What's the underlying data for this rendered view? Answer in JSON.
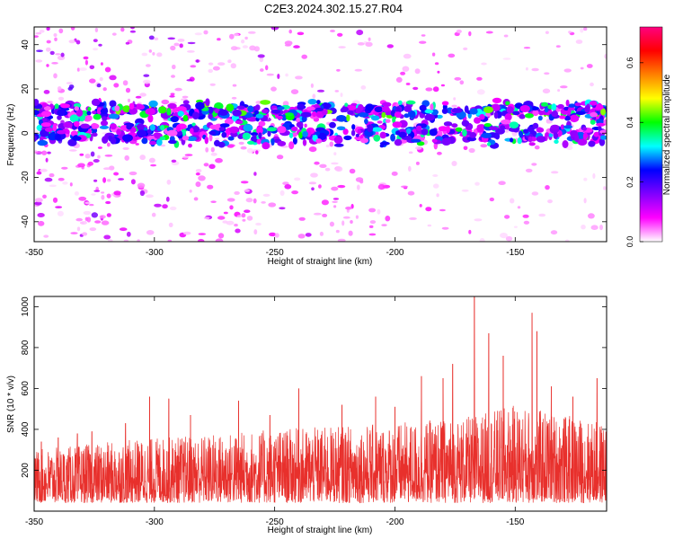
{
  "title": "C2E3.2024.302.15.27.R04",
  "chart_data": [
    {
      "type": "heatmap",
      "xlabel": "Height of straight line (km)",
      "ylabel": "Frequency (Hz)",
      "xlim": [
        -350,
        -112
      ],
      "ylim": [
        -49,
        48
      ],
      "x_ticks": [
        "-350",
        "-300",
        "-250",
        "-200",
        "-150"
      ],
      "x_tick_values": [
        -350,
        -300,
        -250,
        -200,
        -150
      ],
      "y_ticks": [
        "-40",
        "-20",
        "0",
        "20",
        "40"
      ],
      "y_tick_values": [
        -40,
        -20,
        0,
        20,
        40
      ],
      "colorbar": {
        "label": "Normalized spectral amplitude",
        "range": [
          0,
          0.72
        ],
        "ticks": [
          "0.0",
          "0.2",
          "0.4",
          "0.6"
        ],
        "tick_values": [
          0,
          0.2,
          0.4,
          0.6
        ],
        "colormap": [
          "#ffffff",
          "#ff00ff",
          "#8000ff",
          "#0000ff",
          "#00ffff",
          "#00ff00",
          "#ffff00",
          "#ff8000",
          "#ff0000",
          "#ff0080"
        ]
      },
      "bands": [
        {
          "center_hz": 10,
          "width_hz": 5,
          "peak_amplitude": 0.45
        },
        {
          "center_hz": 0,
          "width_hz": 6,
          "peak_amplitude": 0.4
        }
      ]
    },
    {
      "type": "line",
      "xlabel": "Height of straight line (km)",
      "ylabel": "SNR (10 * v/v)",
      "xlim": [
        -350,
        -112
      ],
      "ylim": [
        0,
        1050
      ],
      "x_ticks": [
        "-350",
        "-300",
        "-250",
        "-200",
        "-150"
      ],
      "x_tick_values": [
        -350,
        -300,
        -250,
        -200,
        -150
      ],
      "y_ticks": [
        "200",
        "400",
        "600",
        "800",
        "1000"
      ],
      "y_tick_values": [
        200,
        400,
        600,
        800,
        1000
      ],
      "line_color": "#e8302c",
      "baseline_trend": [
        {
          "x": -350,
          "low": 40,
          "high": 300
        },
        {
          "x": -300,
          "low": 40,
          "high": 360
        },
        {
          "x": -250,
          "low": 40,
          "high": 400
        },
        {
          "x": -200,
          "low": 40,
          "high": 430
        },
        {
          "x": -170,
          "low": 40,
          "high": 460
        },
        {
          "x": -150,
          "low": 40,
          "high": 520
        },
        {
          "x": -112,
          "low": 40,
          "high": 430
        }
      ],
      "peaks": [
        {
          "x": -347,
          "y": 340
        },
        {
          "x": -340,
          "y": 360
        },
        {
          "x": -332,
          "y": 380
        },
        {
          "x": -326,
          "y": 390
        },
        {
          "x": -312,
          "y": 430
        },
        {
          "x": -302,
          "y": 560
        },
        {
          "x": -294,
          "y": 550
        },
        {
          "x": -285,
          "y": 470
        },
        {
          "x": -265,
          "y": 540
        },
        {
          "x": -252,
          "y": 470
        },
        {
          "x": -240,
          "y": 600
        },
        {
          "x": -222,
          "y": 520
        },
        {
          "x": -208,
          "y": 560
        },
        {
          "x": -200,
          "y": 510
        },
        {
          "x": -189,
          "y": 660
        },
        {
          "x": -180,
          "y": 650
        },
        {
          "x": -176,
          "y": 720
        },
        {
          "x": -167,
          "y": 1050
        },
        {
          "x": -161,
          "y": 870
        },
        {
          "x": -155,
          "y": 760
        },
        {
          "x": -143,
          "y": 970
        },
        {
          "x": -141,
          "y": 880
        },
        {
          "x": -135,
          "y": 610
        },
        {
          "x": -126,
          "y": 560
        },
        {
          "x": -116,
          "y": 650
        },
        {
          "x": -112,
          "y": 550
        }
      ]
    }
  ]
}
